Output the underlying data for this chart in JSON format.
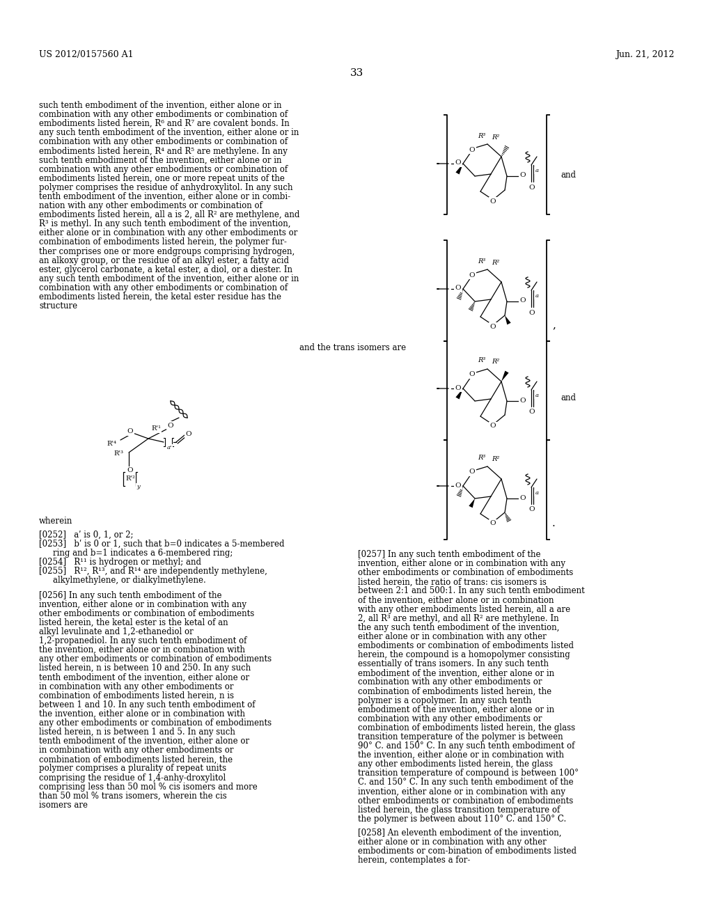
{
  "bg_color": "#ffffff",
  "header_left": "US 2012/0157560 A1",
  "header_right": "Jun. 21, 2012",
  "page_number": "33",
  "left_text": [
    "such tenth embodiment of the invention, either alone or in",
    "combination with any other embodiments or combination of",
    "embodiments listed herein, R⁶ and R⁷ are covalent bonds. In",
    "any such tenth embodiment of the invention, either alone or in",
    "combination with any other embodiments or combination of",
    "embodiments listed herein, R⁴ and R⁵ are methylene. In any",
    "such tenth embodiment of the invention, either alone or in",
    "combination with any other embodiments or combination of",
    "embodiments listed herein, one or more repeat units of the",
    "polymer comprises the residue of anhydroxylitol. In any such",
    "tenth embodiment of the invention, either alone or in combi-",
    "nation with any other embodiments or combination of",
    "embodiments listed herein, all a is 2, all R² are methylene, and",
    "R³ is methyl. In any such tenth embodiment of the invention,",
    "either alone or in combination with any other embodiments or",
    "combination of embodiments listed herein, the polymer fur-",
    "ther comprises one or more endgroups comprising hydrogen,",
    "an alkoxy group, or the residue of an alkyl ester, a fatty acid",
    "ester, glycerol carbonate, a ketal ester, a diol, or a diester. In",
    "any such tenth embodiment of the invention, either alone or in",
    "combination with any other embodiments or combination of",
    "embodiments listed herein, the ketal ester residue has the",
    "structure"
  ],
  "and_the_trans_text": "and the trans isomers are",
  "wherein_text": "wherein",
  "items_252_255": [
    "[0252]   aʹ is 0, 1, or 2;",
    "[0253]   bʹ is 0 or 1, such that b=0 indicates a 5-membered",
    "ring and b=1 indicates a 6-membered ring;",
    "[0254]   R¹¹ is hydrogen or methyl; and",
    "[0255]   R¹², R¹³, and R¹⁴ are independently methylene,",
    "alkylmethylene, or dialkylmethylene."
  ],
  "para_0256": "[0256]   In any such tenth embodiment of the invention, either alone or in combination with any other embodiments or combination of embodiments listed herein, the ketal ester is the ketal of an alkyl levulinate and 1,2-ethanediol or 1,2-propanediol. In any such tenth embodiment of the invention, either alone or in combination with any other embodiments or combination of embodiments listed herein, n is between 10 and 250. In any such tenth embodiment of the invention, either alone or in combination with any other embodiments or combination of embodiments listed herein, n is between 1 and 10. In any such tenth embodiment of the invention, either alone or in combination with any other embodiments or combination of embodiments listed herein, n is between 1 and 5. In any such tenth embodiment of the invention, either alone or in combination with any other embodiments or combination of embodiments listed herein, the polymer comprises a plurality of repeat units comprising the residue of 1,4-anhy-droxylitol comprising less than 50 mol % cis isomers and more than 50 mol % trans isomers, wherein the cis isomers are",
  "para_0257": "[0257]   In any such tenth embodiment of the invention, either alone or in combination with any other embodiments or combination of embodiments listed herein, the ratio of trans: cis isomers is between 2:1 and 500:1. In any such tenth embodiment of the invention, either alone or in combination with any other embodiments listed herein, all a are 2, all R³ are methyl, and all R² are methylene. In the any such tenth embodiment of the invention, either alone or in combination with any other embodiments or combination of embodiments listed herein, the compound is a homopolymer consisting essentially of trans isomers. In any such tenth embodiment of the invention, either alone or in combination with any other embodiments or combination of embodiments listed herein, the polymer is a copolymer. In any such tenth embodiment of the invention, either alone or in combination with any other embodiments or combination of embodiments listed herein, the glass transition temperature of the polymer is between 90° C. and 150° C. In any such tenth embodiment of the invention, either alone or in combination with any other embodiments listed herein, the glass transition temperature of compound is between 100° C. and 150° C. In any such tenth embodiment of the invention, either alone or in combination with any other embodiments or combination of embodiments listed herein, the glass transition temperature of the polymer is between about 110° C. and 150° C.",
  "para_0258": "[0258]   An eleventh embodiment of the invention, either alone or in combination with any other embodiments or com-bination of embodiments listed herein, contemplates a for-"
}
